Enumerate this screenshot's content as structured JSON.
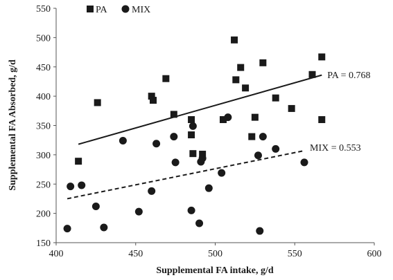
{
  "chart_data": {
    "type": "scatter",
    "xlabel": "Supplemental FA intake, g/d",
    "ylabel": "Supplemental FA Absorbed, g/d",
    "xlim": [
      400,
      600
    ],
    "ylim": [
      150,
      550
    ],
    "xticks": [
      400,
      450,
      500,
      550,
      600
    ],
    "yticks": [
      150,
      200,
      250,
      300,
      350,
      400,
      450,
      500,
      550
    ],
    "grid": false,
    "legend_position": "top-left",
    "series": [
      {
        "name": "PA",
        "marker": "square",
        "color": "#1a1a1a",
        "points": [
          [
            414,
            289
          ],
          [
            426,
            389
          ],
          [
            460,
            400
          ],
          [
            461,
            393
          ],
          [
            469,
            430
          ],
          [
            474,
            369
          ],
          [
            485,
            360
          ],
          [
            485,
            334
          ],
          [
            486,
            302
          ],
          [
            492,
            301
          ],
          [
            505,
            360
          ],
          [
            512,
            496
          ],
          [
            513,
            428
          ],
          [
            516,
            449
          ],
          [
            519,
            414
          ],
          [
            523,
            331
          ],
          [
            525,
            364
          ],
          [
            530,
            457
          ],
          [
            538,
            397
          ],
          [
            548,
            379
          ],
          [
            561,
            437
          ],
          [
            567,
            467
          ],
          [
            567,
            360
          ]
        ],
        "trendline": {
          "style": "solid",
          "from": [
            414,
            318
          ],
          "to": [
            567,
            436
          ],
          "label": "PA = 0.768"
        }
      },
      {
        "name": "MIX",
        "marker": "circle",
        "color": "#1a1a1a",
        "points": [
          [
            407,
            174
          ],
          [
            409,
            246
          ],
          [
            416,
            248
          ],
          [
            425,
            212
          ],
          [
            430,
            176
          ],
          [
            442,
            324
          ],
          [
            452,
            203
          ],
          [
            460,
            238
          ],
          [
            463,
            319
          ],
          [
            474,
            331
          ],
          [
            475,
            287
          ],
          [
            485,
            205
          ],
          [
            486,
            349
          ],
          [
            490,
            183
          ],
          [
            491,
            288
          ],
          [
            492,
            294
          ],
          [
            496,
            243
          ],
          [
            504,
            269
          ],
          [
            508,
            364
          ],
          [
            527,
            299
          ],
          [
            528,
            170
          ],
          [
            530,
            331
          ],
          [
            538,
            310
          ],
          [
            556,
            287
          ]
        ],
        "trendline": {
          "style": "dashed",
          "from": [
            407,
            225
          ],
          "to": [
            556,
            307
          ],
          "label": "MIX = 0.553"
        }
      }
    ]
  }
}
